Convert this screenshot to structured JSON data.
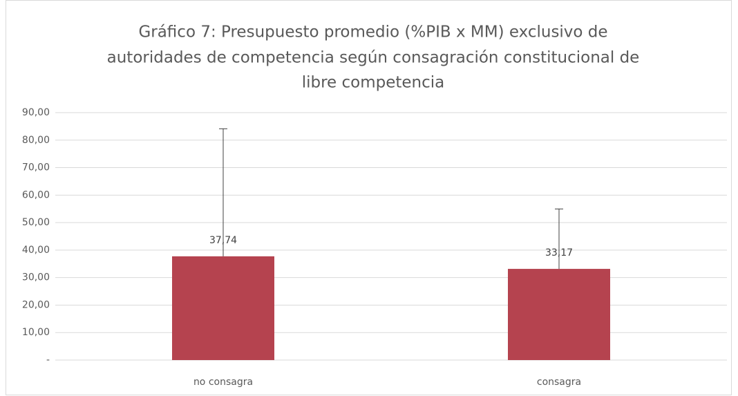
{
  "chart_data": {
    "type": "bar",
    "title": [
      "Gráfico 7: Presupuesto promedio (%PIB x MM) exclusivo de",
      "autoridades de competencia según consagración constitucional de",
      "libre competencia"
    ],
    "categories": [
      "no consagra",
      "consagra"
    ],
    "values": [
      37.74,
      33.17
    ],
    "value_labels": [
      "37,74",
      "33,17"
    ],
    "errors": [
      46.4,
      21.8
    ],
    "color": "#b5434f",
    "ylim": [
      0,
      90
    ],
    "yticks": [
      {
        "value": 0,
        "label": "-"
      },
      {
        "value": 10,
        "label": "10,00"
      },
      {
        "value": 20,
        "label": "20,00"
      },
      {
        "value": 30,
        "label": "30,00"
      },
      {
        "value": 40,
        "label": "40,00"
      },
      {
        "value": 50,
        "label": "50,00"
      },
      {
        "value": 60,
        "label": "60,00"
      },
      {
        "value": 70,
        "label": "70,00"
      },
      {
        "value": 80,
        "label": "80,00"
      },
      {
        "value": 90,
        "label": "90,00"
      }
    ],
    "grid": true
  }
}
